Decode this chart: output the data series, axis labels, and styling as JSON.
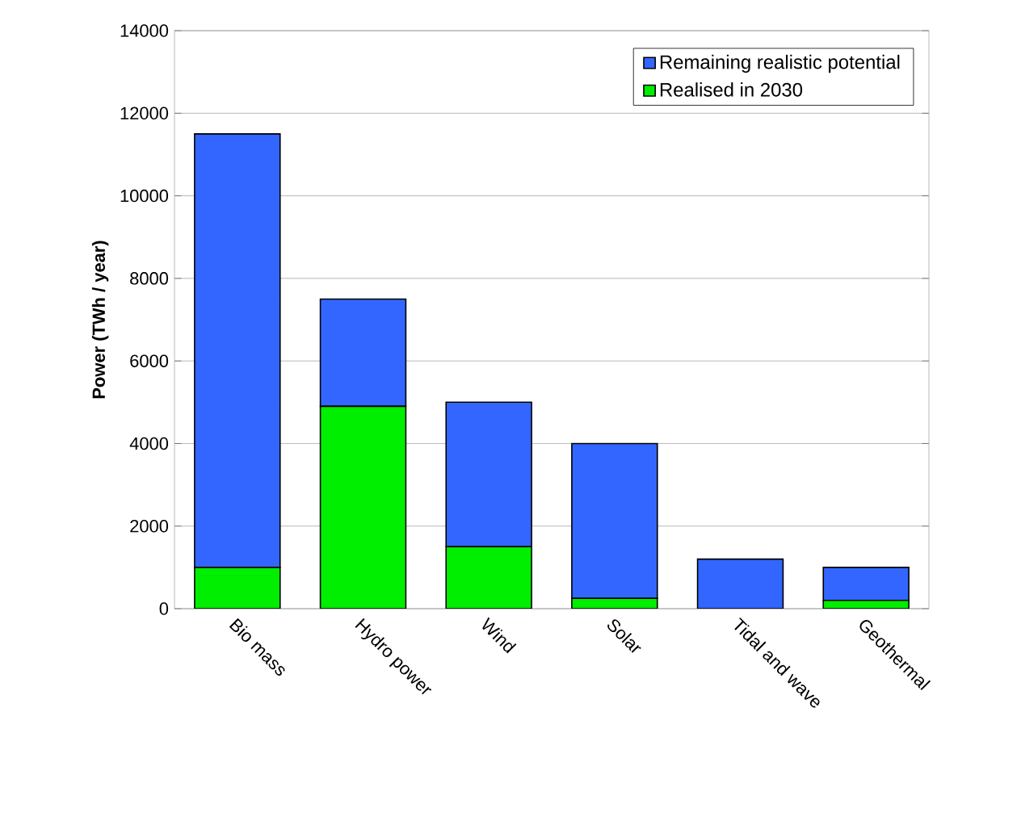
{
  "chart_data": {
    "type": "bar",
    "stacked": true,
    "ylabel": "Power (TWh / year)",
    "categories": [
      "Bio mass",
      "Hydro power",
      "Wind",
      "Solar",
      "Tidal and wave",
      "Geothermal"
    ],
    "series": [
      {
        "name": "Realised in 2030",
        "color": "#00ee00",
        "values": [
          1000,
          4900,
          1500,
          250,
          null,
          200
        ]
      },
      {
        "name": "Remaining realistic potential",
        "color": "#3366ff",
        "values": [
          10500,
          2600,
          3500,
          3750,
          1200,
          800
        ]
      }
    ],
    "ylim": [
      0,
      14000
    ],
    "yticks": [
      0,
      2000,
      4000,
      6000,
      8000,
      10000,
      12000,
      14000
    ],
    "grid": "y",
    "legend": "top right"
  }
}
